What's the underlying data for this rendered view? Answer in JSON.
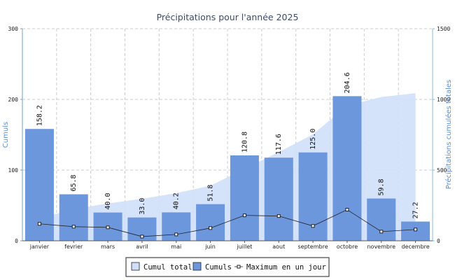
{
  "chart_data": {
    "type": "bar",
    "title": "Précipitations pour l'année 2025",
    "categories": [
      "janvier",
      "fevrier",
      "mars",
      "avril",
      "mai",
      "juin",
      "juillet",
      "aout",
      "septembre",
      "octobre",
      "novembre",
      "decembre"
    ],
    "series": [
      {
        "name": "Cumul total",
        "kind": "area",
        "axis": "right",
        "color": "#cfdff9",
        "values": [
          158.2,
          224.0,
          264.0,
          297.0,
          337.2,
          389.0,
          509.8,
          627.4,
          752.4,
          957.0,
          1016.8,
          1044.0
        ]
      },
      {
        "name": "Cumuls",
        "kind": "bar",
        "axis": "left",
        "color": "#6d97dd",
        "values": [
          158.2,
          65.8,
          40.0,
          33.0,
          40.2,
          51.8,
          120.8,
          117.6,
          125.0,
          204.6,
          59.8,
          27.2
        ],
        "labels": [
          "158.2",
          "65.8",
          "40.0",
          "33.0",
          "40.2",
          "51.8",
          "120.8",
          "117.6",
          "125.0",
          "204.6",
          "59.8",
          "27.2"
        ]
      },
      {
        "name": "Maximum en un jour",
        "kind": "line",
        "axis": "left",
        "color": "#222222",
        "values": [
          24,
          20,
          19,
          6,
          9,
          18,
          36,
          35,
          21,
          44,
          13,
          16
        ]
      }
    ],
    "y_left": {
      "label": "Cumuls",
      "ylim": [
        0,
        300
      ],
      "ticks": [
        "0",
        "100",
        "200",
        "300"
      ]
    },
    "y_right": {
      "label": "Précipitations cumulées totales",
      "ylim": [
        0,
        1500
      ],
      "ticks": [
        "0",
        "500",
        "1000",
        "1500"
      ]
    },
    "grid": true,
    "legend_position": "bottom-center",
    "colors": {
      "axis_left": "#6ea0d6",
      "axis_right": "#84b8e0",
      "grid": "#cccccc",
      "title": "#3d4a66"
    }
  }
}
